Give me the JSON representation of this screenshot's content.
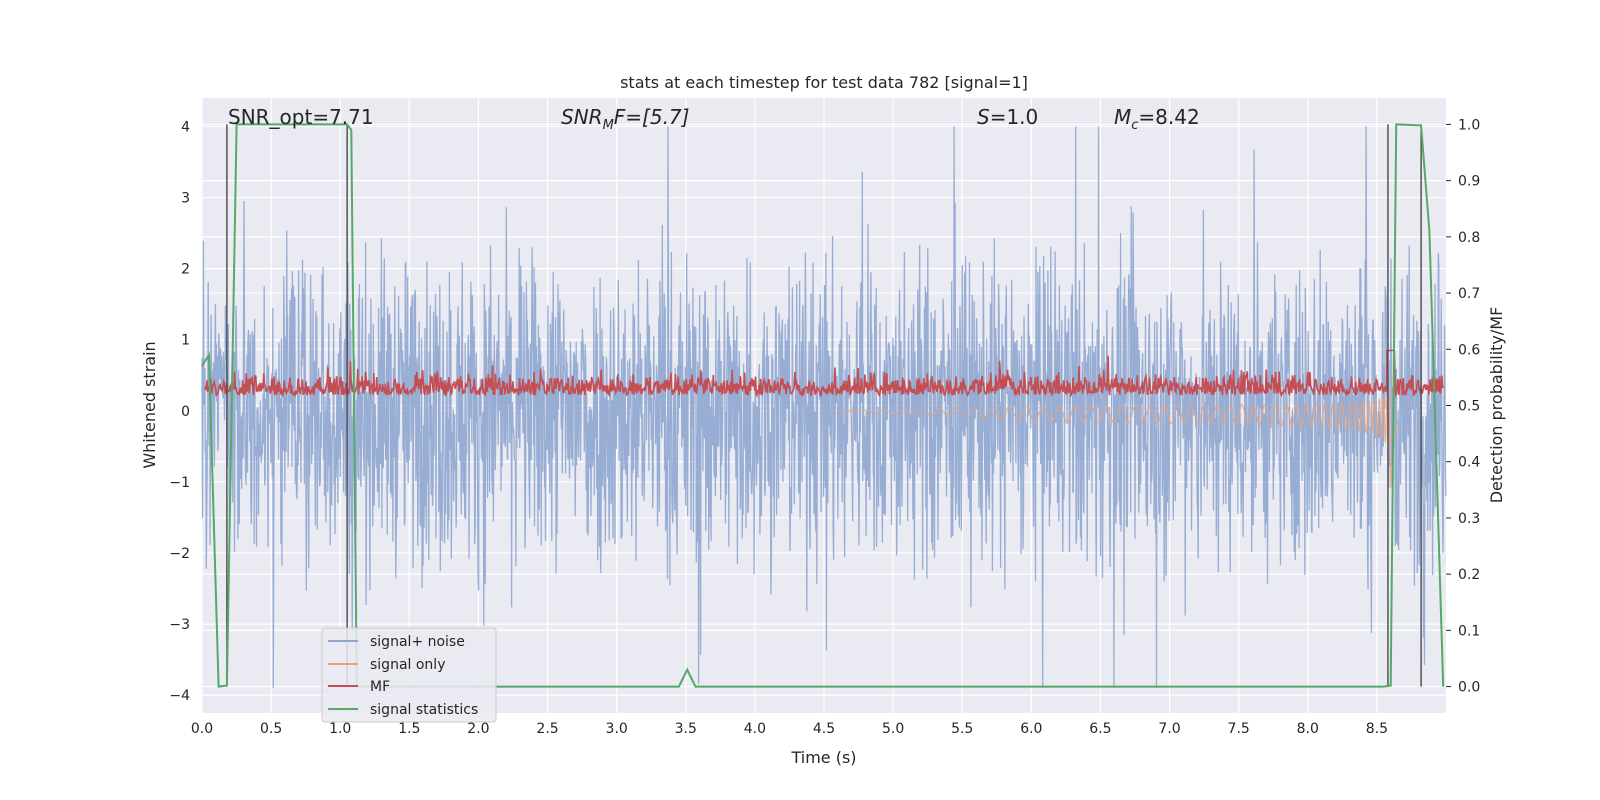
{
  "chart_data": {
    "type": "line",
    "title": "stats at each timestep for test data 782 [signal=1]",
    "xlabel": "Time (s)",
    "ylabel": "Whitened strain",
    "ylabel_right": "Detection probability/MF",
    "xlim": [
      0.0,
      9.0
    ],
    "ylim": [
      -4.25,
      4.4
    ],
    "ylim_right": [
      -0.047,
      1.047
    ],
    "x_ticks": [
      "0.0",
      "0.5",
      "1.0",
      "1.5",
      "2.0",
      "2.5",
      "3.0",
      "3.5",
      "4.0",
      "4.5",
      "5.0",
      "5.5",
      "6.0",
      "6.5",
      "7.0",
      "7.5",
      "8.0",
      "8.5"
    ],
    "y_ticks": [
      "−4",
      "−3",
      "−2",
      "−1",
      "0",
      "1",
      "2",
      "3",
      "4"
    ],
    "y_ticks_right": [
      "0.0",
      "0.1",
      "0.2",
      "0.3",
      "0.4",
      "0.5",
      "0.6",
      "0.7",
      "0.8",
      "0.9",
      "1.0"
    ],
    "grid": true,
    "legend_position": "lower-left",
    "annotations": {
      "snr_opt": "SNR_opt=7.71",
      "snr_mf_main": "SNR",
      "snr_mf_sub": "M",
      "snr_mf_rest": "F=[5.7]",
      "s_main": "S",
      "s_rest": "=1.0",
      "mc_main": "M",
      "mc_sub": "c",
      "mc_rest": "=8.42"
    },
    "series": [
      {
        "name": "signal+ noise",
        "color": "#8fa6cf",
        "style": "dense noise approx. ±1.5 with spikes up to ±4",
        "typical_abs_max": 4.0
      },
      {
        "name": "signal only",
        "color": "#e8a27f",
        "style": "chirp, amplitude growing toward merger near t≈8.6 s",
        "merger_time": 8.6
      },
      {
        "name": "MF",
        "color": "#c44e52",
        "style": "noisy band mostly between 0.0 and 0.7 on right axis scale ~0.5–0.62",
        "peak_time": 8.6
      },
      {
        "name": "signal statistics",
        "color": "#55a868",
        "x": [
          0.0,
          0.05,
          0.12,
          0.18,
          0.25,
          0.3,
          1.05,
          1.08,
          1.12,
          3.45,
          3.51,
          3.57,
          8.55,
          8.6,
          8.64,
          8.82,
          8.88,
          8.98
        ],
        "y": [
          0.57,
          0.59,
          0.0,
          0.002,
          1.0,
          1.0,
          1.0,
          0.99,
          0.0,
          0.0,
          0.03,
          0.0,
          0.0,
          0.002,
          1.0,
          0.998,
          0.81,
          0.0
        ]
      }
    ],
    "vlines": [
      0.18,
      1.05,
      8.58,
      8.82
    ]
  }
}
